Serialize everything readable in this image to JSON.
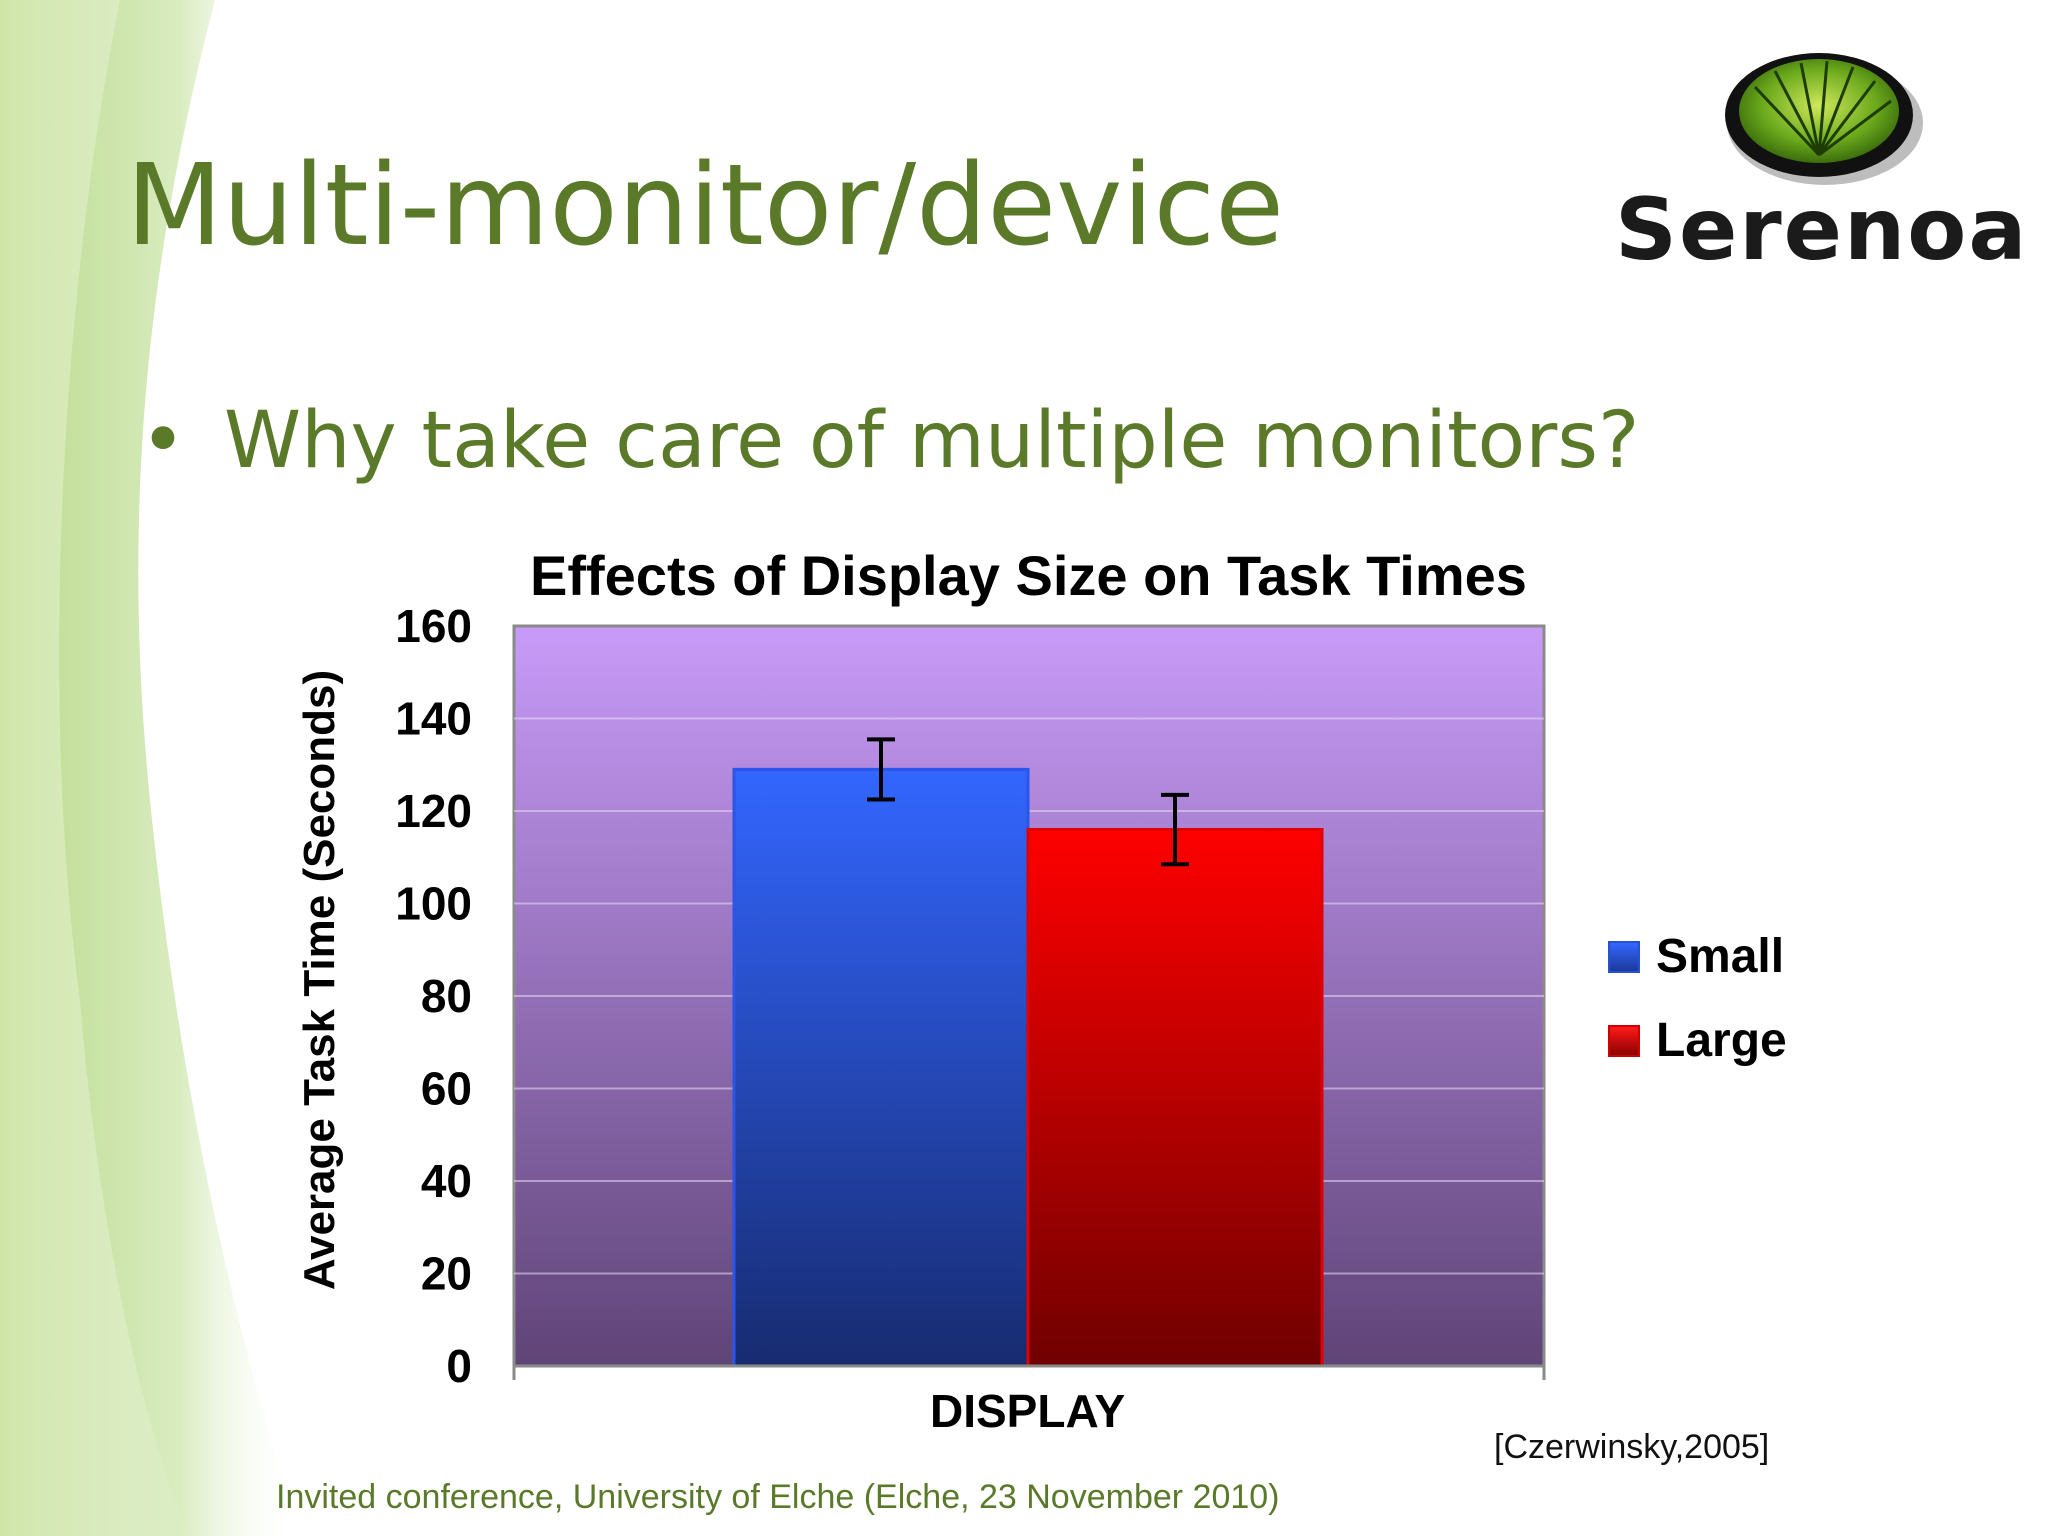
{
  "slide": {
    "title": "Multi-monitor/device",
    "bullet": "Why take care of multiple monitors?",
    "logo_text": "Serenoa",
    "citation": "[Czerwinsky,2005]",
    "footer": "Invited conference, University of Elche (Elche, 23 November 2010)"
  },
  "colors": {
    "title": "#5a7a2a",
    "small": "#3366ff",
    "large": "#ff0000",
    "plot_bg_top": "#c89bf8",
    "plot_bg_bottom": "#5f4477"
  },
  "icons": [
    "serenoa-logo-icon",
    "bullet-dot-icon"
  ],
  "chart_data": {
    "type": "bar",
    "title": "Effects of Display Size on Task Times",
    "xlabel": "DISPLAY",
    "ylabel": "Average Task Time (Seconds)",
    "categories": [
      "DISPLAY"
    ],
    "ylim": [
      0,
      160
    ],
    "yticks": [
      0,
      20,
      40,
      60,
      80,
      100,
      120,
      140,
      160
    ],
    "grid": true,
    "legend_position": "right",
    "series": [
      {
        "name": "Small",
        "values": [
          129
        ],
        "error": [
          6.5
        ],
        "color": "#3366ff"
      },
      {
        "name": "Large",
        "values": [
          116
        ],
        "error": [
          7.5
        ],
        "color": "#ff0000"
      }
    ]
  }
}
